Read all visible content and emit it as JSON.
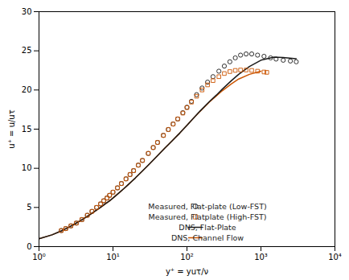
{
  "chart_data": {
    "type": "line",
    "xlabel": "y⁺ = yuτ/ν",
    "ylabel": "u⁺ = u/uτ",
    "log": "x",
    "grid": false,
    "legend": "lower right",
    "xlim": [
      1,
      10000
    ],
    "ylim": [
      0,
      30
    ],
    "xticks": [
      {
        "value": 1,
        "label": "10⁰"
      },
      {
        "value": 10,
        "label": "10¹"
      },
      {
        "value": 100,
        "label": "10²"
      },
      {
        "value": 1000,
        "label": "10³"
      },
      {
        "value": 10000,
        "label": "10⁴"
      }
    ],
    "yticks": [
      0,
      5,
      10,
      15,
      20,
      25,
      30
    ],
    "series": [
      {
        "name": "Measured, Flat-plate (Low-FST)",
        "type": "scatter",
        "marker": "circle",
        "color": "#1a1a1a",
        "x": [
          2.0,
          2.3,
          2.7,
          3.2,
          3.8,
          4.5,
          5.2,
          6.0,
          6.8,
          7.5,
          8.3,
          9.0,
          10.0,
          11.5,
          13.0,
          15.0,
          17.0,
          19.0,
          22.0,
          25.0,
          30.0,
          35.0,
          40.0,
          48.0,
          56.0,
          65.0,
          75.0,
          88.0,
          100.0,
          115.0,
          135.0,
          160.0,
          190.0,
          225.0,
          270.0,
          320.0,
          380.0,
          450.0,
          530.0,
          630.0,
          750.0,
          900.0,
          1100.0,
          1350.0,
          1600.0,
          2000.0,
          2500.0,
          3000.0
        ],
        "values": [
          2.05,
          2.3,
          2.65,
          3.0,
          3.45,
          4.0,
          4.5,
          5.0,
          5.45,
          5.85,
          6.2,
          6.55,
          6.95,
          7.5,
          8.05,
          8.65,
          9.2,
          9.7,
          10.4,
          11.0,
          11.9,
          12.65,
          13.3,
          14.2,
          14.95,
          15.65,
          16.3,
          17.1,
          17.8,
          18.55,
          19.4,
          20.25,
          21.0,
          21.7,
          22.4,
          23.05,
          23.6,
          24.1,
          24.45,
          24.6,
          24.6,
          24.45,
          24.3,
          24.1,
          23.95,
          23.8,
          23.7,
          23.6
        ]
      },
      {
        "name": "Measured, Flatplate (High-FST)",
        "type": "scatter",
        "marker": "square",
        "color": "#cc5500",
        "x": [
          2.0,
          2.3,
          2.7,
          3.2,
          3.8,
          4.5,
          5.2,
          6.0,
          6.8,
          7.5,
          8.3,
          9.0,
          10.0,
          11.5,
          13.0,
          15.0,
          17.0,
          19.0,
          22.0,
          25.0,
          30.0,
          35.0,
          40.0,
          48.0,
          56.0,
          65.0,
          75.0,
          88.0,
          100.0,
          115.0,
          135.0,
          160.0,
          190.0,
          225.0,
          270.0,
          320.0,
          380.0,
          450.0,
          530.0,
          630.0,
          750.0,
          900.0,
          1100.0,
          1200.0
        ],
        "values": [
          2.05,
          2.3,
          2.65,
          3.0,
          3.45,
          4.0,
          4.5,
          5.0,
          5.45,
          5.85,
          6.2,
          6.55,
          6.95,
          7.5,
          8.05,
          8.65,
          9.2,
          9.7,
          10.4,
          11.0,
          11.9,
          12.65,
          13.3,
          14.2,
          14.95,
          15.65,
          16.3,
          17.05,
          17.75,
          18.45,
          19.2,
          20.0,
          20.65,
          21.2,
          21.7,
          22.1,
          22.35,
          22.5,
          22.55,
          22.55,
          22.5,
          22.4,
          22.3,
          22.25
        ]
      },
      {
        "name": "DNS, Flat-Plate",
        "type": "line",
        "line_style": "solid",
        "color": "#1a1a1a",
        "x": [
          1.0,
          1.5,
          2.0,
          2.5,
          3.0,
          4.0,
          5.0,
          6.0,
          7.0,
          8.0,
          9.0,
          10.0,
          12.0,
          14.0,
          16.0,
          18.0,
          20.0,
          25.0,
          30.0,
          40.0,
          50.0,
          60.0,
          70.0,
          80.0,
          100.0,
          120.0,
          150.0,
          200.0,
          250.0,
          300.0,
          400.0,
          500.0,
          700.0,
          1000.0,
          1500.0,
          2000.0,
          3000.0
        ],
        "values": [
          1.0,
          1.5,
          2.0,
          2.45,
          2.85,
          3.55,
          4.15,
          4.65,
          5.1,
          5.5,
          5.85,
          6.2,
          6.85,
          7.4,
          7.9,
          8.35,
          8.75,
          9.65,
          10.4,
          11.6,
          12.55,
          13.3,
          13.95,
          14.5,
          15.5,
          16.3,
          17.3,
          18.5,
          19.35,
          20.1,
          21.2,
          22.0,
          23.0,
          23.8,
          24.2,
          24.15,
          24.0
        ]
      },
      {
        "name": "DNS, Channel Flow",
        "type": "line",
        "line_style": "solid",
        "color": "#cc5500",
        "x": [
          1.0,
          1.5,
          2.0,
          2.5,
          3.0,
          4.0,
          5.0,
          6.0,
          7.0,
          8.0,
          9.0,
          10.0,
          12.0,
          14.0,
          16.0,
          18.0,
          20.0,
          25.0,
          30.0,
          40.0,
          50.0,
          60.0,
          70.0,
          80.0,
          100.0,
          120.0,
          150.0,
          200.0,
          250.0,
          300.0,
          400.0,
          500.0,
          700.0,
          1000.0
        ],
        "values": [
          1.0,
          1.5,
          2.0,
          2.45,
          2.85,
          3.55,
          4.15,
          4.65,
          5.1,
          5.5,
          5.85,
          6.2,
          6.85,
          7.4,
          7.9,
          8.35,
          8.75,
          9.65,
          10.4,
          11.6,
          12.55,
          13.3,
          13.95,
          14.5,
          15.5,
          16.3,
          17.25,
          18.45,
          19.25,
          19.9,
          20.8,
          21.4,
          22.0,
          22.4
        ]
      }
    ]
  }
}
